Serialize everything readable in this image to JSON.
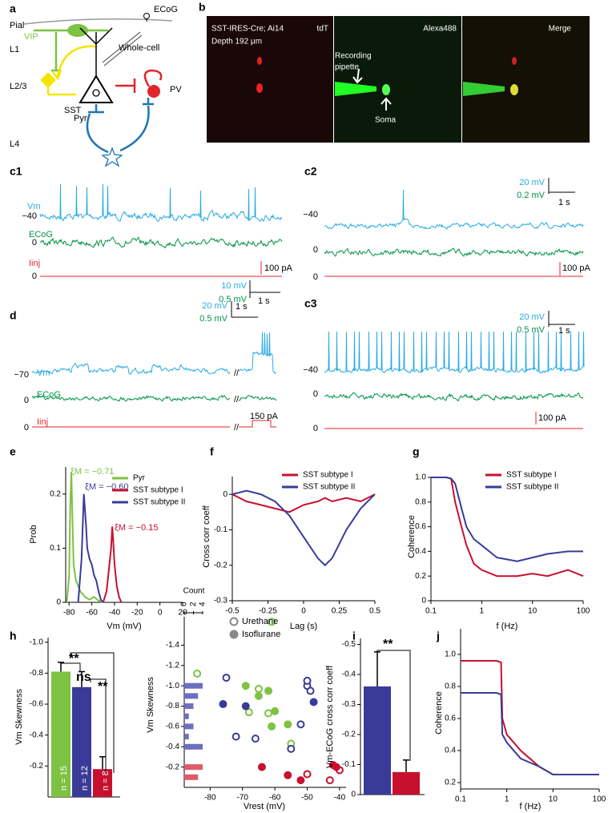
{
  "a": {
    "label": "a",
    "pial": "Pial",
    "ecog": "ECoG",
    "l1": "L1",
    "vip": "VIP",
    "whole_cell": "Whole-cell",
    "l23": "L2/3",
    "sst": "SST",
    "pv": "PV",
    "pyr": "Pyr",
    "l4": "L4"
  },
  "b": {
    "label": "b",
    "line1": "SST-IRES-Cre; Ai14",
    "line2": "Depth 192 μm",
    "tdt": "tdT",
    "alexa": "Alexa488",
    "merge": "Merge",
    "pipette1": "Recording",
    "pipette2": "pipette",
    "soma": "Soma"
  },
  "c1": {
    "label": "c1",
    "vm": "Vm",
    "ecog": "ECoG",
    "iinj": "Iinj",
    "vm_level": "−40",
    "ecog_level": "0",
    "iinj_level": "0",
    "current_scale": "100 pA",
    "v_scale": "10 mV",
    "ecog_scale": "0.5 mV",
    "time_scale": "1 s"
  },
  "c2": {
    "label": "c2",
    "vm_level": "−40",
    "ecog_level": "0",
    "iinj_level": "0",
    "current_scale": "100 pA",
    "v_scale": "20 mV",
    "ecog_scale": "0.2 mV",
    "time_scale": "1 s"
  },
  "d": {
    "label": "d",
    "vm": "Vm",
    "ecog": "ECoG",
    "iinj": "Iinj",
    "vm_level": "−70",
    "ecog_level": "0",
    "iinj_level": "0",
    "current_scale": "150 pA",
    "v_scale": "20 mV",
    "ecog_scale": "0.5 mV",
    "time_scale": "1 s",
    "break": "//"
  },
  "c3": {
    "label": "c3",
    "vm_level": "−40",
    "ecog_level": "0",
    "iinj_level": "0",
    "current_scale": "100 pA",
    "v_scale": "20 mV",
    "ecog_scale": "0.5 mV",
    "time_scale": "1 s"
  },
  "chart_data": [
    {
      "type": "line",
      "panel_label": "e",
      "y_label": "Prob",
      "x_label": "Vm (mV)",
      "xlim": [
        -83,
        20
      ],
      "xticks": [
        -80,
        -60,
        -40,
        -20,
        0,
        20
      ],
      "ylim": [
        0,
        0.25
      ],
      "yticks": [
        0,
        0.1,
        0.2
      ],
      "legend": "upper right",
      "series": [
        {
          "name": "Pyr",
          "color": "#7dc242",
          "x": [
            -82,
            -80,
            -79,
            -78,
            -77,
            -76,
            -74,
            -72,
            -70,
            -66,
            -62,
            -58,
            -54,
            -50
          ],
          "values": [
            0,
            0.05,
            0.18,
            0.24,
            0.15,
            0.07,
            0.04,
            0.03,
            0.02,
            0.01,
            0.005,
            0.01,
            0.003,
            0
          ]
        },
        {
          "name": "SST subtype I",
          "color": "#c8102e",
          "x": [
            -50,
            -47,
            -45,
            -43,
            -42,
            -41,
            -40,
            -38,
            -36,
            -34
          ],
          "values": [
            0,
            0.02,
            0.06,
            0.1,
            0.14,
            0.11,
            0.07,
            0.03,
            0.01,
            0
          ]
        },
        {
          "name": "SST subtype II",
          "color": "#3a3b98",
          "x": [
            -72,
            -69,
            -67,
            -66,
            -65,
            -64,
            -62,
            -60,
            -58,
            -56,
            -54,
            -52,
            -50
          ],
          "values": [
            0,
            0.08,
            0.2,
            0.17,
            0.14,
            0.1,
            0.08,
            0.07,
            0.05,
            0.04,
            0.02,
            0.005,
            0
          ]
        }
      ],
      "annotations": [
        {
          "text": "ξM = −0.71",
          "color": "#7dc242"
        },
        {
          "text": "ξM = −0.60",
          "color": "#3a3b98"
        },
        {
          "text": "ξM = −0.15",
          "color": "#c8102e"
        }
      ]
    },
    {
      "type": "line",
      "panel_label": "f",
      "y_label": "Cross corr coeff",
      "x_label": "Lag (s)",
      "xlim": [
        -0.5,
        0.5
      ],
      "xticks": [
        -0.5,
        -0.25,
        0,
        0.25,
        0.5
      ],
      "ylim": [
        -0.3,
        0.05
      ],
      "yticks": [
        -0.3,
        -0.2,
        -0.1,
        0
      ],
      "legend": "upper right",
      "x": [
        -0.5,
        -0.4,
        -0.3,
        -0.2,
        -0.1,
        0,
        0.1,
        0.15,
        0.2,
        0.3,
        0.4,
        0.5
      ],
      "series": [
        {
          "name": "SST subtype I",
          "color": "#c8102e",
          "values": [
            0,
            -0.02,
            -0.03,
            -0.04,
            -0.05,
            -0.03,
            -0.02,
            -0.01,
            -0.02,
            -0.01,
            -0.02,
            0
          ]
        },
        {
          "name": "SST subtype II",
          "color": "#3a3b98",
          "values": [
            0,
            0.01,
            0,
            -0.02,
            -0.06,
            -0.12,
            -0.18,
            -0.2,
            -0.18,
            -0.1,
            -0.04,
            0
          ]
        }
      ]
    },
    {
      "type": "line",
      "panel_label": "g",
      "y_label": "Coherence",
      "x_label": "f (Hz)",
      "xlog": true,
      "xlim": [
        0.1,
        100
      ],
      "xticks": [
        0.1,
        1,
        10,
        100
      ],
      "ylim": [
        0,
        1
      ],
      "yticks": [
        0,
        0.2,
        0.4,
        0.6,
        0.8,
        {
          "value": 1,
          "label": "1.0"
        }
      ],
      "legend": "upper right",
      "x": [
        0.1,
        0.2,
        0.25,
        0.3,
        0.4,
        0.5,
        0.7,
        1,
        2,
        5,
        10,
        20,
        50,
        100
      ],
      "series": [
        {
          "name": "SST subtype I",
          "color": "#c8102e",
          "values": [
            1,
            1,
            0.99,
            0.8,
            0.6,
            0.45,
            0.3,
            0.25,
            0.2,
            0.2,
            0.22,
            0.2,
            0.25,
            0.2
          ]
        },
        {
          "name": "SST subtype II",
          "color": "#3a3b98",
          "values": [
            1,
            1,
            0.99,
            0.95,
            0.75,
            0.6,
            0.5,
            0.45,
            0.35,
            0.32,
            0.35,
            0.38,
            0.4,
            0.4
          ]
        }
      ]
    },
    {
      "type": "bar",
      "panel_label": "h",
      "y_label": "Vm Skewness",
      "ylim": [
        0,
        -1.03
      ],
      "yticks": [
        {
          "value": -1,
          "label": "-1.0"
        },
        -0.8,
        -0.6,
        -0.4,
        -0.2
      ],
      "values": [
        -0.81,
        -0.71,
        -0.18
      ],
      "errors": [
        0.06,
        0.1,
        0.08
      ],
      "colors": [
        "#7dc242",
        "#3a3b98",
        "#c8102e"
      ],
      "n_labels": [
        "n = 15",
        "n = 12",
        "n = 8"
      ],
      "annotations": [
        {
          "text": "ns",
          "color": "#000"
        },
        {
          "text": "**",
          "color": "#000"
        },
        {
          "text": "**",
          "color": "#000"
        }
      ]
    },
    {
      "type": "scatter",
      "y_label": "Vm Skewness",
      "x_label": "Vrest (mV)",
      "xlim": [
        -88,
        -38
      ],
      "xticks": [
        -80,
        -70,
        -60,
        -50,
        -40
      ],
      "ylim": [
        0,
        -1.68
      ],
      "yticks": [
        -1.4,
        -1.2,
        {
          "value": -1,
          "label": "-1.0"
        },
        -0.8,
        -0.6,
        -0.4,
        -0.2
      ],
      "legend": "upper center",
      "series": [
        {
          "name": "Urethane",
          "filled": false,
          "x": [
            -84,
            -61,
            -65,
            -68,
            -62,
            -55,
            -75,
            -72,
            -66,
            -55,
            -50,
            -49,
            -50,
            -52,
            -50,
            -43,
            -40
          ],
          "values": [
            -1.12,
            -1.63,
            -0.97,
            -0.74,
            -0.73,
            -0.43,
            -1.08,
            -0.5,
            -0.48,
            -0.38,
            -1.0,
            -0.95,
            -1.05,
            -0.62,
            -0.13,
            -0.07,
            -0.17
          ],
          "colors": [
            "#7dc242",
            "#7dc242",
            "#7dc242",
            "#7dc242",
            "#7dc242",
            "#7dc242",
            "#3a3b98",
            "#3a3b98",
            "#3a3b98",
            "#3a3b98",
            "#3a3b98",
            "#3a3b98",
            "#3a3b98",
            "#3a3b98",
            "#c8102e",
            "#c8102e",
            "#c8102e"
          ]
        },
        {
          "name": "Isoflurane",
          "filled": true,
          "x": [
            -69,
            -65,
            -60,
            -61,
            -56,
            -76,
            -69,
            -48,
            -62,
            -64,
            -56,
            -52,
            -42,
            -41
          ],
          "values": [
            -1.0,
            -0.9,
            -0.75,
            -0.6,
            -0.62,
            -0.82,
            -0.8,
            -0.84,
            -0.95,
            -0.2,
            -0.12,
            -0.07,
            -0.22,
            -0.2
          ],
          "colors": [
            "#7dc242",
            "#7dc242",
            "#7dc242",
            "#7dc242",
            "#7dc242",
            "#3a3b98",
            "#3a3b98",
            "#3a3b98",
            "#7dc242",
            "#c8102e",
            "#c8102e",
            "#c8102e",
            "#c8102e",
            "#c8102e"
          ]
        }
      ],
      "count_label": "Count",
      "count_ticks": [
        0,
        2,
        4
      ],
      "marginal": [
        {
          "color": "#6d6fc0",
          "y": [
            -1.0,
            -0.9,
            -0.8,
            -0.7,
            -0.6,
            -0.5,
            -0.4
          ],
          "counts": [
            4,
            3,
            2,
            1,
            2,
            1,
            4
          ]
        },
        {
          "color": "#e05a6a",
          "y": [
            -0.2,
            -0.1
          ],
          "counts": [
            4,
            3
          ]
        }
      ]
    },
    {
      "type": "bar",
      "panel_label": "i",
      "y_label": "Vm-ECoG cross corr coeff",
      "ylim": [
        0,
        -0.52
      ],
      "yticks": [
        0,
        -0.1,
        -0.2,
        -0.3,
        -0.4,
        -0.5
      ],
      "values": [
        -0.36,
        -0.075
      ],
      "errors": [
        0.115,
        0.04
      ],
      "colors": [
        "#3a3b98",
        "#c8102e"
      ],
      "annotations": [
        {
          "text": "**",
          "color": "#000"
        }
      ]
    },
    {
      "type": "line",
      "panel_label": "j",
      "y_label": "Coherence",
      "x_label": "f (Hz)",
      "xlog": true,
      "xlim": [
        0.1,
        100
      ],
      "xticks": [
        0.1,
        1,
        10,
        100
      ],
      "ylim": [
        0.16,
        1.16
      ],
      "yticks": [
        0.2,
        0.4,
        0.6,
        0.8,
        {
          "value": 1,
          "label": "1.0"
        }
      ],
      "x": [
        0.1,
        0.2,
        0.3,
        0.4,
        0.5,
        0.6,
        0.75,
        0.8,
        1,
        2,
        5,
        10,
        20,
        100
      ],
      "series": [
        {
          "name": "SST subtype I",
          "color": "#c8102e",
          "values": [
            0.96,
            0.96,
            0.96,
            0.96,
            0.96,
            0.96,
            0.95,
            0.6,
            0.5,
            0.4,
            0.3,
            0.25,
            0.25,
            0.25
          ]
        },
        {
          "name": "SST subtype II",
          "color": "#3a3b98",
          "values": [
            0.76,
            0.76,
            0.76,
            0.76,
            0.76,
            0.76,
            0.75,
            0.5,
            0.45,
            0.35,
            0.3,
            0.25,
            0.25,
            0.25
          ]
        }
      ]
    }
  ]
}
